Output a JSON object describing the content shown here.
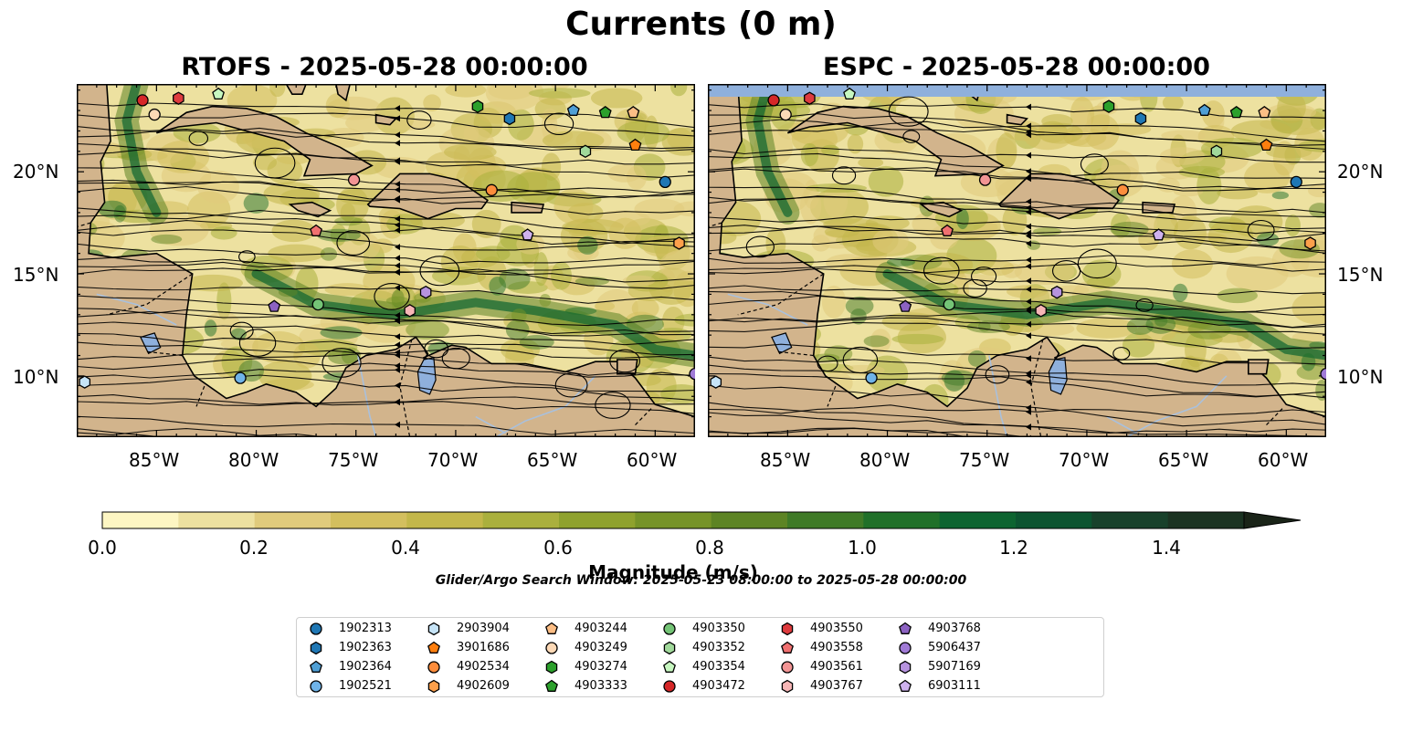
{
  "title": "Currents (0 m)",
  "panels": [
    {
      "title": "RTOFS - 2025-05-28 00:00:00"
    },
    {
      "title": "ESPC - 2025-05-28 00:00:00"
    }
  ],
  "map": {
    "lon_range": [
      -89,
      -58
    ],
    "lat_range": [
      7,
      24.3
    ],
    "lon_ticks": [
      "85°W",
      "80°W",
      "75°W",
      "70°W",
      "65°W",
      "60°W"
    ],
    "lat_ticks": [
      "20°N",
      "15°N",
      "10°N"
    ],
    "colors": {
      "land": "#d2b48c",
      "water": "#8fb0dc",
      "coast": "#000000"
    }
  },
  "colorbar": {
    "label": "Magnitude (m/s)",
    "ticks": [
      "0.0",
      "0.2",
      "0.4",
      "0.6",
      "0.8",
      "1.0",
      "1.2",
      "1.4"
    ],
    "range": [
      0,
      1.5
    ],
    "extend": "max",
    "colors": [
      "#fdf6c3",
      "#ede1a0",
      "#e0cb7c",
      "#d3bf5e",
      "#c3b74a",
      "#aab03d",
      "#8fa22e",
      "#769328",
      "#5d8424",
      "#3f7a27",
      "#207029",
      "#0d6430",
      "#0c5430",
      "#18412b",
      "#1b3322",
      "#1a2418"
    ]
  },
  "search_window": "Glider/Argo Search Window: 2025-05-23 08:00:00 to 2025-05-28 00:00:00",
  "legend": [
    {
      "id": "1902313",
      "marker": "circle",
      "color": "#1f77b4"
    },
    {
      "id": "1902363",
      "marker": "hexagon",
      "color": "#1f77b4"
    },
    {
      "id": "1902364",
      "marker": "pentagon",
      "color": "#4f9fd5"
    },
    {
      "id": "1902521",
      "marker": "circle",
      "color": "#6fb3e8"
    },
    {
      "id": "2903904",
      "marker": "hexagon",
      "color": "#c6e4f7"
    },
    {
      "id": "3901686",
      "marker": "pentagon",
      "color": "#ff7f0e"
    },
    {
      "id": "4902534",
      "marker": "circle",
      "color": "#fd8d3c"
    },
    {
      "id": "4902609",
      "marker": "hexagon",
      "color": "#fda04b"
    },
    {
      "id": "4903244",
      "marker": "pentagon",
      "color": "#fdbe85"
    },
    {
      "id": "4903249",
      "marker": "circle",
      "color": "#fdd9b6"
    },
    {
      "id": "4903274",
      "marker": "hexagon",
      "color": "#2ca02c"
    },
    {
      "id": "4903333",
      "marker": "pentagon",
      "color": "#2ca02c"
    },
    {
      "id": "4903350",
      "marker": "circle",
      "color": "#74c476"
    },
    {
      "id": "4903352",
      "marker": "hexagon",
      "color": "#a1d99b"
    },
    {
      "id": "4903354",
      "marker": "pentagon",
      "color": "#c7f7c0"
    },
    {
      "id": "4903472",
      "marker": "circle",
      "color": "#d62728"
    },
    {
      "id": "4903550",
      "marker": "hexagon",
      "color": "#de3b3e"
    },
    {
      "id": "4903558",
      "marker": "pentagon",
      "color": "#f07070"
    },
    {
      "id": "4903561",
      "marker": "circle",
      "color": "#f29494"
    },
    {
      "id": "4903767",
      "marker": "hexagon",
      "color": "#f7b6b6"
    },
    {
      "id": "4903768",
      "marker": "pentagon",
      "color": "#8c62c2"
    },
    {
      "id": "5906437",
      "marker": "circle",
      "color": "#a07ad6"
    },
    {
      "id": "5907169",
      "marker": "hexagon",
      "color": "#b693de"
    },
    {
      "id": "6903111",
      "marker": "pentagon",
      "color": "#cfb2ef"
    }
  ],
  "floats": [
    {
      "id": "4903472",
      "lon": -85.7,
      "lat": 23.5
    },
    {
      "id": "4903249",
      "lon": -85.1,
      "lat": 22.8
    },
    {
      "id": "4903550",
      "lon": -83.9,
      "lat": 23.6
    },
    {
      "id": "4903354",
      "lon": -81.9,
      "lat": 23.8
    },
    {
      "id": "4903274",
      "lon": -68.9,
      "lat": 23.2
    },
    {
      "id": "1902363",
      "lon": -67.3,
      "lat": 22.6
    },
    {
      "id": "1902364",
      "lon": -64.1,
      "lat": 23.0
    },
    {
      "id": "4903333",
      "lon": -62.5,
      "lat": 22.9
    },
    {
      "id": "4903244",
      "lon": -61.1,
      "lat": 22.9
    },
    {
      "id": "4903352",
      "lon": -63.5,
      "lat": 21.0
    },
    {
      "id": "3901686",
      "lon": -61.0,
      "lat": 21.3
    },
    {
      "id": "4903561",
      "lon": -75.1,
      "lat": 19.6
    },
    {
      "id": "4902534",
      "lon": -68.2,
      "lat": 19.1
    },
    {
      "id": "1902313",
      "lon": -59.5,
      "lat": 19.5
    },
    {
      "id": "4903558",
      "lon": -77.0,
      "lat": 17.1
    },
    {
      "id": "6903111",
      "lon": -66.4,
      "lat": 16.9
    },
    {
      "id": "4902609",
      "lon": -58.8,
      "lat": 16.5
    },
    {
      "id": "4903768",
      "lon": -79.1,
      "lat": 13.4
    },
    {
      "id": "4903350",
      "lon": -76.9,
      "lat": 13.5
    },
    {
      "id": "5907169",
      "lon": -71.5,
      "lat": 14.1
    },
    {
      "id": "4903767",
      "lon": -72.3,
      "lat": 13.2
    },
    {
      "id": "1902521",
      "lon": -80.8,
      "lat": 9.9
    },
    {
      "id": "2903904",
      "lon": -88.6,
      "lat": 9.7
    },
    {
      "id": "5906437",
      "lon": -58.0,
      "lat": 10.1
    }
  ]
}
